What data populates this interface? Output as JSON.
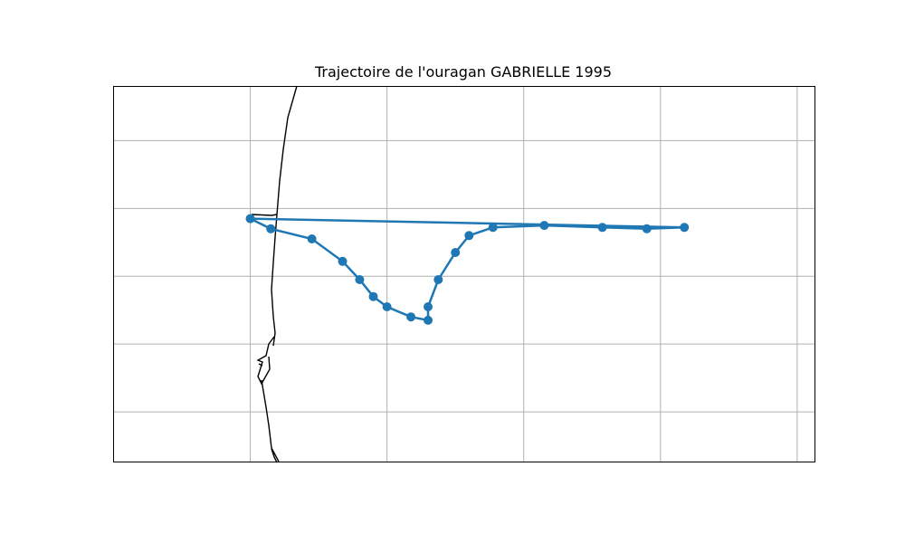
{
  "title": "Trajectoire de l'ouragan GABRIELLE 1995",
  "colors": {
    "track": "#1f77b4",
    "grid": "#b0b0b0",
    "coast": "#000000",
    "frame": "#000000"
  },
  "map": {
    "projection": "PlateCarree",
    "extent_deg": {
      "lon_min": -99,
      "lon_max": -88.74,
      "lat_min": 20.26,
      "lat_max": 25.8
    },
    "gridlines_lon": [
      -97,
      -95,
      -93,
      -91,
      -89
    ],
    "gridlines_lat": [
      21,
      22,
      23,
      24,
      25
    ],
    "gridline_labels_shown": false,
    "coastline_shown": true
  },
  "chart_data": {
    "type": "scatter",
    "series": [
      {
        "lon": [
          -97.0,
          -96.7,
          -96.1,
          -95.65,
          -95.4,
          -95.2,
          -95.0,
          -94.65,
          -94.4,
          -94.4,
          -94.25,
          -94.0,
          -93.8,
          -93.45,
          -92.7,
          -91.85,
          -91.2,
          -90.65,
          -97.0
        ],
        "lat": [
          23.85,
          23.7,
          23.55,
          23.22,
          22.95,
          22.7,
          22.55,
          22.4,
          22.35,
          22.55,
          22.95,
          23.35,
          23.6,
          23.72,
          23.75,
          23.72,
          23.7,
          23.72,
          23.85
        ]
      }
    ],
    "marker": "circle",
    "line": "connected"
  }
}
